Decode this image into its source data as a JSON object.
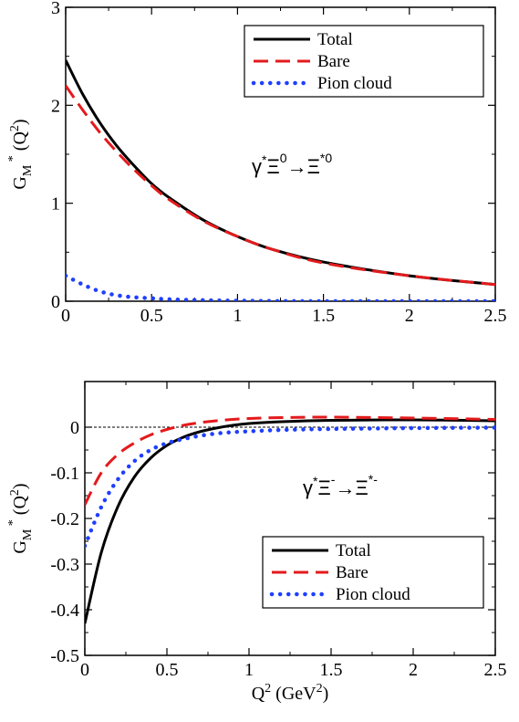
{
  "chart_data": [
    {
      "type": "line",
      "title": "",
      "xlabel": "",
      "ylabel": {
        "base": "G",
        "sub": "M",
        "sup": "*",
        "arg": "(Q",
        "argsup": "2",
        "close": ")"
      },
      "xlim": [
        0,
        2.5
      ],
      "ylim": [
        0,
        3
      ],
      "xticks": [
        0,
        0.5,
        1,
        1.5,
        2,
        2.5
      ],
      "xtick_labels": [
        "0",
        "0.5",
        "1",
        "1.5",
        "2",
        "2.5"
      ],
      "yticks": [
        0,
        1,
        2,
        3
      ],
      "ytick_labels": [
        "0",
        "1",
        "2",
        "3"
      ],
      "legend_placement": "top-right",
      "annotation": {
        "pre": "γ",
        "pre_sup": "*",
        "mid": "Ξ",
        "mid_sup": "0",
        "arrow": "→",
        "post": "Ξ",
        "post_sup": "*0"
      },
      "x": [
        0,
        0.1,
        0.2,
        0.3,
        0.4,
        0.5,
        0.6,
        0.8,
        1.0,
        1.2,
        1.5,
        2.0,
        2.5
      ],
      "series": [
        {
          "name": "Total",
          "color": "#000000",
          "style": "solid",
          "values": [
            2.46,
            2.11,
            1.82,
            1.58,
            1.38,
            1.2,
            1.06,
            0.83,
            0.66,
            0.53,
            0.4,
            0.26,
            0.17
          ]
        },
        {
          "name": "Bare",
          "color": "#e41a1c",
          "style": "dashed",
          "values": [
            2.2,
            1.95,
            1.72,
            1.52,
            1.34,
            1.18,
            1.04,
            0.82,
            0.66,
            0.53,
            0.39,
            0.26,
            0.17
          ]
        },
        {
          "name": "Pion cloud",
          "color": "#1f3fff",
          "style": "dotted",
          "values": [
            0.26,
            0.17,
            0.1,
            0.06,
            0.04,
            0.03,
            0.02,
            0.01,
            0.005,
            0.002,
            0.0,
            0.0,
            0.0
          ]
        }
      ]
    },
    {
      "type": "line",
      "title": "",
      "xlabel": {
        "base": "Q",
        "sup": "2",
        "unit": "(GeV",
        "unitsup": "2",
        "close": ")"
      },
      "ylabel": {
        "base": "G",
        "sub": "M",
        "sup": "*",
        "arg": "(Q",
        "argsup": "2",
        "close": ")"
      },
      "xlim": [
        0,
        2.5
      ],
      "ylim": [
        -0.5,
        0.1
      ],
      "xticks": [
        0,
        0.5,
        1,
        1.5,
        2,
        2.5
      ],
      "xtick_labels": [
        "0",
        "0.5",
        "1",
        "1.5",
        "2",
        "2.5"
      ],
      "yticks": [
        -0.5,
        -0.4,
        -0.3,
        -0.2,
        -0.1,
        0
      ],
      "ytick_labels": [
        "-0.5",
        "-0.4",
        "-0.3",
        "-0.2",
        "-0.1",
        "0"
      ],
      "zero_line": true,
      "legend_placement": "bottom-right",
      "annotation": {
        "pre": "γ",
        "pre_sup": "*",
        "mid": "Ξ",
        "mid_sup": "-",
        "arrow": "→",
        "post": "Ξ",
        "post_sup": "*-"
      },
      "x": [
        0,
        0.1,
        0.2,
        0.3,
        0.4,
        0.5,
        0.6,
        0.7,
        0.8,
        0.9,
        1.0,
        1.2,
        1.5,
        2.0,
        2.5
      ],
      "series": [
        {
          "name": "Total",
          "color": "#000000",
          "style": "solid",
          "values": [
            -0.43,
            -0.275,
            -0.175,
            -0.11,
            -0.068,
            -0.04,
            -0.022,
            -0.01,
            -0.002,
            0.004,
            0.008,
            0.012,
            0.015,
            0.016,
            0.014
          ]
        },
        {
          "name": "Bare",
          "color": "#e41a1c",
          "style": "dashed",
          "values": [
            -0.17,
            -0.1,
            -0.06,
            -0.035,
            -0.017,
            -0.005,
            0.004,
            0.01,
            0.014,
            0.017,
            0.019,
            0.021,
            0.022,
            0.02,
            0.017
          ]
        },
        {
          "name": "Pion cloud",
          "color": "#1f3fff",
          "style": "dotted",
          "values": [
            -0.26,
            -0.175,
            -0.115,
            -0.075,
            -0.05,
            -0.035,
            -0.026,
            -0.019,
            -0.014,
            -0.011,
            -0.009,
            -0.006,
            -0.004,
            -0.002,
            -0.001
          ]
        }
      ]
    }
  ]
}
